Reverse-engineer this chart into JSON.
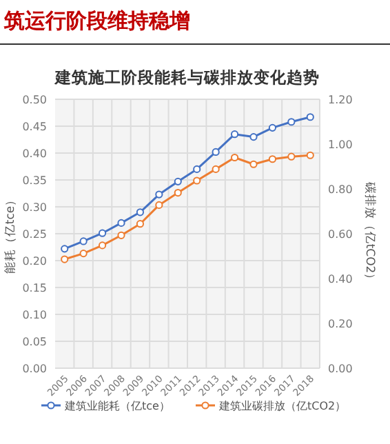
{
  "chart_data": {
    "type": "line",
    "title": "建筑施工阶段能耗与碳排放变化趋势",
    "annotations": [
      "筑运行阶段维持稳增"
    ],
    "categories": [
      "2005",
      "2006",
      "2007",
      "2008",
      "2009",
      "2010",
      "2011",
      "2012",
      "2013",
      "2014",
      "2015",
      "2016",
      "2017",
      "2018"
    ],
    "series": [
      {
        "name": "建筑业能耗（亿tce）",
        "color": "#4472c4",
        "values": [
          0.222,
          0.236,
          0.251,
          0.27,
          0.29,
          0.323,
          0.347,
          0.37,
          0.402,
          0.435,
          0.43,
          0.447,
          0.458,
          0.467
        ]
      },
      {
        "name": "建筑业碳排放（亿tCO2）",
        "color": "#ed7d31",
        "axis": "y2",
        "values": [
          0.486,
          0.512,
          0.548,
          0.593,
          0.644,
          0.728,
          0.783,
          0.837,
          0.888,
          0.94,
          0.91,
          0.933,
          0.944,
          0.95
        ]
      }
    ],
    "ylabel": "能耗（亿tce）",
    "y2label": "碳排放（亿tCO2）",
    "ylim": [
      0,
      0.5
    ],
    "yticks": [
      {
        "value": 0,
        "label": "0.00"
      },
      {
        "value": 0.05,
        "label": "0.05"
      },
      {
        "value": 0.1,
        "label": "0.10"
      },
      {
        "value": 0.15,
        "label": "0.15"
      },
      {
        "value": 0.2,
        "label": "0.20"
      },
      {
        "value": 0.25,
        "label": "0.25"
      },
      {
        "value": 0.3,
        "label": "0.30"
      },
      {
        "value": 0.35,
        "label": "0.35"
      },
      {
        "value": 0.4,
        "label": "0.40"
      },
      {
        "value": 0.45,
        "label": "0.45"
      },
      {
        "value": 0.5,
        "label": "0.50"
      }
    ],
    "y2lim": [
      0,
      1.2
    ],
    "y2ticks": [
      {
        "value": 0,
        "label": "0.00"
      },
      {
        "value": 0.2,
        "label": "0.20"
      },
      {
        "value": 0.4,
        "label": "0.40"
      },
      {
        "value": 0.6,
        "label": "0.60"
      },
      {
        "value": 0.8,
        "label": "0.80"
      },
      {
        "value": 1.0,
        "label": "1.00"
      },
      {
        "value": 1.2,
        "label": "1.20"
      }
    ],
    "grid": true,
    "legend": "bottom",
    "marker": "circle",
    "line_style": "solid"
  }
}
